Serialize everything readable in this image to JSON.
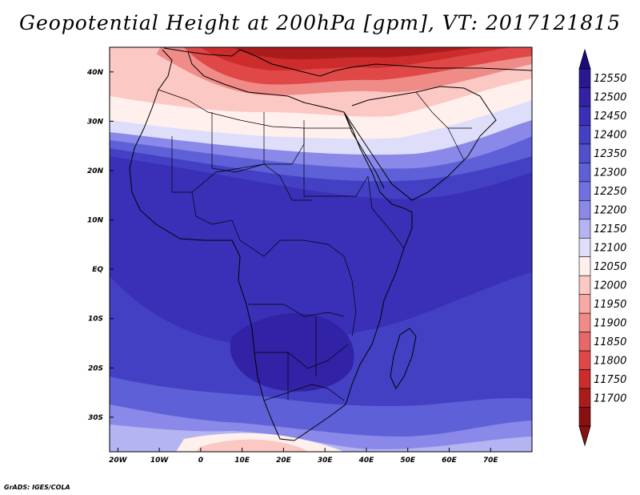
{
  "title": "Geopotential Height at 200hPa [gpm], VT: 2017121815",
  "credit": "GrADS: IGES/COLA",
  "map": {
    "lon_range": [
      -22,
      80
    ],
    "lat_range": [
      -37,
      45
    ],
    "lon_ticks": [
      {
        "value": -20,
        "label": "20W"
      },
      {
        "value": -10,
        "label": "10W"
      },
      {
        "value": 0,
        "label": "0"
      },
      {
        "value": 10,
        "label": "10E"
      },
      {
        "value": 20,
        "label": "20E"
      },
      {
        "value": 30,
        "label": "30E"
      },
      {
        "value": 40,
        "label": "40E"
      },
      {
        "value": 50,
        "label": "50E"
      },
      {
        "value": 60,
        "label": "60E"
      },
      {
        "value": 70,
        "label": "70E"
      }
    ],
    "lat_ticks": [
      {
        "value": 40,
        "label": "40N"
      },
      {
        "value": 30,
        "label": "30N"
      },
      {
        "value": 20,
        "label": "20N"
      },
      {
        "value": 10,
        "label": "10N"
      },
      {
        "value": 0,
        "label": "EQ"
      },
      {
        "value": -10,
        "label": "10S"
      },
      {
        "value": -20,
        "label": "20S"
      },
      {
        "value": -30,
        "label": "30S"
      }
    ]
  },
  "colorbar": {
    "levels": [
      12550,
      12500,
      12450,
      12400,
      12350,
      12300,
      12250,
      12200,
      12150,
      12100,
      12050,
      12000,
      11950,
      11900,
      11850,
      11800,
      11750,
      11700
    ],
    "colors": [
      "#2a1890",
      "#3222a5",
      "#3a30b8",
      "#4440c4",
      "#5050cc",
      "#5e60d8",
      "#7070e0",
      "#8a88e8",
      "#b4b4f2",
      "#dedefa",
      "#fff0ee",
      "#fcc8c4",
      "#f8a8a4",
      "#f08c88",
      "#e86868",
      "#e04848",
      "#cc2c2c",
      "#aa1c1c",
      "#8a1010"
    ],
    "top_arrow_color": "#1a0a80",
    "bottom_arrow_color": "#8a1010"
  }
}
